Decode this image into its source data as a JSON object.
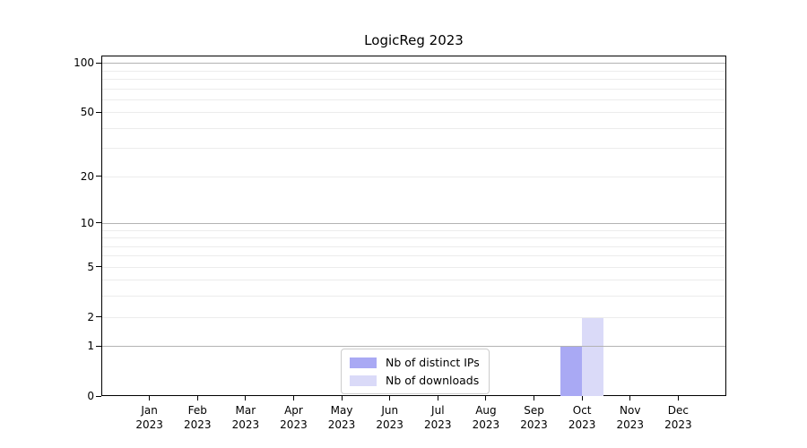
{
  "chart_data": {
    "type": "bar",
    "title": "LogicReg 2023",
    "categories": [
      "Jan",
      "Feb",
      "Mar",
      "Apr",
      "May",
      "Jun",
      "Jul",
      "Aug",
      "Sep",
      "Oct",
      "Nov",
      "Dec"
    ],
    "category_year": "2023",
    "series": [
      {
        "name": "Nb of distinct IPs",
        "color": "#a9a9f4",
        "values": [
          0,
          0,
          0,
          0,
          0,
          0,
          0,
          0,
          0,
          1,
          0,
          0
        ]
      },
      {
        "name": "Nb of downloads",
        "color": "#dadaf8",
        "values": [
          0,
          0,
          0,
          0,
          0,
          0,
          0,
          0,
          0,
          2,
          0,
          0
        ]
      }
    ],
    "yticks": [
      0,
      1,
      2,
      5,
      10,
      20,
      50,
      100
    ],
    "yscale": "log1p",
    "ylim": [
      0,
      111
    ],
    "grid": {
      "major_values": [
        1,
        10,
        100
      ],
      "minor_values": [
        2,
        3,
        4,
        5,
        6,
        7,
        8,
        9,
        20,
        30,
        40,
        50,
        60,
        70,
        80,
        90
      ],
      "major_color": "#b3b3b3",
      "minor_color": "#ececec"
    },
    "legend": {
      "position": "lower center",
      "entries": [
        "Nb of distinct IPs",
        "Nb of downloads"
      ]
    },
    "axis_color": "#000000"
  }
}
